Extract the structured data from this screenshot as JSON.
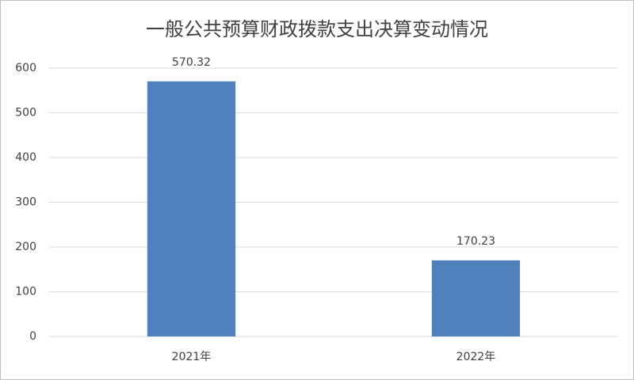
{
  "chart_data": {
    "type": "bar",
    "title": "一般公共预算财政拨款支出决算变动情况",
    "categories": [
      "2021年",
      "2022年"
    ],
    "values": [
      570.32,
      170.23
    ],
    "color": "#4f81bd",
    "ylim": [
      0,
      600
    ],
    "yticks": [
      0,
      100,
      200,
      300,
      400,
      500,
      600
    ],
    "grid": true
  }
}
